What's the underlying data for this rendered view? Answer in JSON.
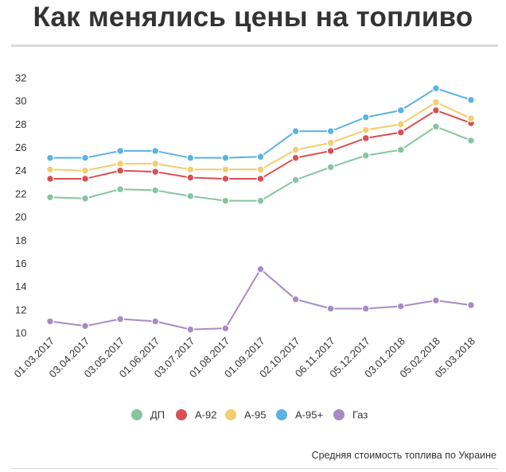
{
  "header": {
    "title": "Как менялись цены на топливо"
  },
  "footer": {
    "source": "Средняя стоимость топлива по Украине"
  },
  "chart_data": {
    "type": "line",
    "title": "Как менялись цены на топливо",
    "xlabel": "",
    "ylabel": "",
    "x": [
      "01.03.2017",
      "03.04.2017",
      "03.05.2017",
      "01.06.2017",
      "03.07.2017",
      "01.08.2017",
      "01.09.2017",
      "02.10.2017",
      "06.11.2017",
      "05.12.2017",
      "03.01.2018",
      "05.02.2018",
      "05.03.2018"
    ],
    "ylim": [
      10,
      32
    ],
    "yticks": [
      "32",
      "30",
      "28",
      "26",
      "24",
      "22",
      "20",
      "18",
      "16",
      "14",
      "12",
      "10"
    ],
    "grid": false,
    "legend": "bottom",
    "series": [
      {
        "name": "ДП",
        "color": "#88c4a0",
        "values": [
          21.7,
          21.6,
          22.4,
          22.3,
          21.8,
          21.4,
          21.4,
          23.2,
          24.3,
          25.3,
          25.8,
          27.8,
          26.6
        ]
      },
      {
        "name": "А-92",
        "color": "#d94f52",
        "values": [
          23.3,
          23.3,
          24.0,
          23.9,
          23.4,
          23.3,
          23.3,
          25.1,
          25.7,
          26.8,
          27.3,
          29.2,
          28.1
        ]
      },
      {
        "name": "А-95",
        "color": "#f3cd6e",
        "values": [
          24.1,
          24.0,
          24.6,
          24.6,
          24.1,
          24.1,
          24.1,
          25.8,
          26.4,
          27.5,
          28.0,
          29.9,
          28.5
        ]
      },
      {
        "name": "А-95+",
        "color": "#5ab3e2",
        "values": [
          25.1,
          25.1,
          25.7,
          25.7,
          25.1,
          25.1,
          25.2,
          27.4,
          27.4,
          28.6,
          29.2,
          31.1,
          30.1
        ]
      },
      {
        "name": "Газ",
        "color": "#a78bc4",
        "values": [
          11.0,
          10.6,
          11.2,
          11.0,
          10.3,
          10.4,
          15.5,
          12.9,
          12.1,
          12.1,
          12.3,
          12.8,
          12.4
        ]
      }
    ]
  }
}
